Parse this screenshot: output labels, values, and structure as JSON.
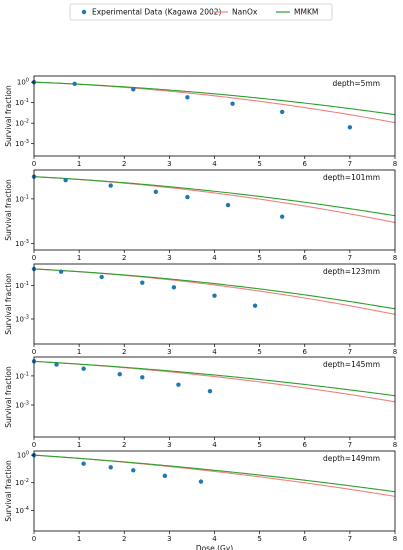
{
  "legend": {
    "items": [
      {
        "label": "Experimental Data (Kagawa 2002)",
        "kind": "marker",
        "color": "#1f77b4"
      },
      {
        "label": "NanOx",
        "kind": "line",
        "color": "#f08080"
      },
      {
        "label": "MMKM",
        "kind": "line",
        "color": "#2ca02c"
      }
    ],
    "placement": "top-center"
  },
  "chart_data": [
    {
      "type": "scatter",
      "annotation": "depth=5mm",
      "ylabel": "Survival fraction",
      "xlabel": "",
      "xlim": [
        0,
        8
      ],
      "yscale": "log",
      "ylim_exp": [
        -3.6,
        0.3
      ],
      "yticks": [
        {
          "base": "10",
          "exp": "0",
          "value": 0
        },
        {
          "base": "10",
          "exp": "-1",
          "value": -1
        },
        {
          "base": "10",
          "exp": "-2",
          "value": -2
        },
        {
          "base": "10",
          "exp": "-3",
          "value": -3
        }
      ],
      "xticks": [
        "0",
        "1",
        "2",
        "3",
        "4",
        "5",
        "6",
        "7",
        "8"
      ],
      "series": [
        {
          "name": "Experimental Data (Kagawa 2002)",
          "kind": "points",
          "x": [
            0,
            0.9,
            2.2,
            3.4,
            4.4,
            5.5,
            7.0
          ],
          "log10_y": [
            0,
            -0.08,
            -0.35,
            -0.74,
            -1.05,
            -1.45,
            -2.2
          ]
        },
        {
          "name": "NanOx",
          "kind": "curve",
          "alpha": 0.2,
          "beta": 0.046
        },
        {
          "name": "MMKM",
          "kind": "curve",
          "alpha": 0.2,
          "beta": 0.032
        }
      ]
    },
    {
      "type": "scatter",
      "annotation": "depth=101mm",
      "ylabel": "Survival fraction",
      "xlabel": "",
      "xlim": [
        0,
        8
      ],
      "yscale": "log",
      "ylim_exp": [
        -3.3,
        0.3
      ],
      "yticks": [
        {
          "base": "10",
          "exp": "-1",
          "value": -1
        },
        {
          "base": "10",
          "exp": "-3",
          "value": -3
        }
      ],
      "xticks": [
        "0",
        "1",
        "2",
        "3",
        "4",
        "5",
        "6",
        "7",
        "8"
      ],
      "series": [
        {
          "name": "Experimental Data (Kagawa 2002)",
          "kind": "points",
          "x": [
            0,
            0.7,
            1.7,
            2.7,
            3.4,
            4.3,
            5.5
          ],
          "log10_y": [
            0,
            -0.16,
            -0.4,
            -0.68,
            -0.92,
            -1.28,
            -1.8
          ]
        },
        {
          "name": "NanOx",
          "kind": "curve",
          "alpha": 0.25,
          "beta": 0.043
        },
        {
          "name": "MMKM",
          "kind": "curve",
          "alpha": 0.25,
          "beta": 0.032
        }
      ]
    },
    {
      "type": "scatter",
      "annotation": "depth=123mm",
      "ylabel": "Survival fraction",
      "xlabel": "",
      "xlim": [
        0,
        8
      ],
      "yscale": "log",
      "ylim_exp": [
        -4.5,
        0.3
      ],
      "yticks": [
        {
          "base": "10",
          "exp": "-1",
          "value": -1
        },
        {
          "base": "10",
          "exp": "-3",
          "value": -3
        }
      ],
      "xticks": [
        "0",
        "1",
        "2",
        "3",
        "4",
        "5",
        "6",
        "7",
        "8"
      ],
      "series": [
        {
          "name": "Experimental Data (Kagawa 2002)",
          "kind": "points",
          "x": [
            0,
            0.6,
            1.5,
            2.4,
            3.1,
            4.0,
            4.9
          ],
          "log10_y": [
            0,
            -0.16,
            -0.48,
            -0.82,
            -1.1,
            -1.6,
            -2.2
          ]
        },
        {
          "name": "NanOx",
          "kind": "curve",
          "alpha": 0.32,
          "beta": 0.058
        },
        {
          "name": "MMKM",
          "kind": "curve",
          "alpha": 0.32,
          "beta": 0.046
        }
      ]
    },
    {
      "type": "scatter",
      "annotation": "depth=145mm",
      "ylabel": "Survival fraction",
      "xlabel": "",
      "xlim": [
        0,
        8
      ],
      "yscale": "log",
      "ylim_exp": [
        -5.2,
        0.3
      ],
      "yticks": [
        {
          "base": "10",
          "exp": "-1",
          "value": -1
        },
        {
          "base": "10",
          "exp": "-3",
          "value": -3
        }
      ],
      "xticks": [
        "0",
        "1",
        "2",
        "3",
        "4",
        "5",
        "6",
        "7",
        "8"
      ],
      "series": [
        {
          "name": "Experimental Data (Kagawa 2002)",
          "kind": "points",
          "x": [
            0,
            0.5,
            1.1,
            1.9,
            2.4,
            3.2,
            3.9
          ],
          "log10_y": [
            0,
            -0.22,
            -0.5,
            -0.88,
            -1.1,
            -1.6,
            -2.05
          ]
        },
        {
          "name": "NanOx",
          "kind": "curve",
          "alpha": 0.4,
          "beta": 0.05
        },
        {
          "name": "MMKM",
          "kind": "curve",
          "alpha": 0.4,
          "beta": 0.035
        }
      ]
    },
    {
      "type": "scatter",
      "annotation": "depth=149mm",
      "ylabel": "Survival fraction",
      "xlabel": "Dose (Gy)",
      "xlim": [
        0,
        8
      ],
      "yscale": "log",
      "ylim_exp": [
        -5.5,
        0.3
      ],
      "yticks": [
        {
          "base": "10",
          "exp": "0",
          "value": 0
        },
        {
          "base": "10",
          "exp": "-2",
          "value": -2
        },
        {
          "base": "10",
          "exp": "-4",
          "value": -4
        }
      ],
      "xticks": [
        "0",
        "1",
        "2",
        "3",
        "4",
        "5",
        "6",
        "7",
        "8"
      ],
      "series": [
        {
          "name": "Experimental Data (Kagawa 2002)",
          "kind": "points",
          "x": [
            0,
            1.1,
            1.7,
            2.2,
            2.9,
            3.7
          ],
          "log10_y": [
            0,
            -0.62,
            -0.88,
            -1.1,
            -1.5,
            -1.92
          ]
        },
        {
          "name": "NanOx",
          "kind": "curve",
          "alpha": 0.5,
          "beta": 0.045
        },
        {
          "name": "MMKM",
          "kind": "curve",
          "alpha": 0.5,
          "beta": 0.033
        }
      ]
    }
  ]
}
